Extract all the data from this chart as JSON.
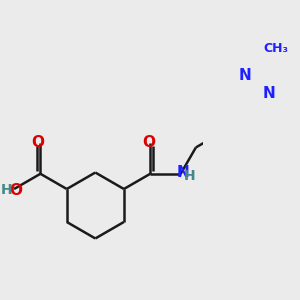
{
  "bg_color": "#ebebeb",
  "bond_color": "#1a1a1a",
  "N_color": "#2020ff",
  "O_color": "#dd0000",
  "H_color": "#448888",
  "bond_width": 1.8,
  "font_size": 10,
  "fig_size": [
    3.0,
    3.0
  ],
  "dpi": 100,
  "xlim": [
    0,
    300
  ],
  "ylim": [
    0,
    300
  ]
}
